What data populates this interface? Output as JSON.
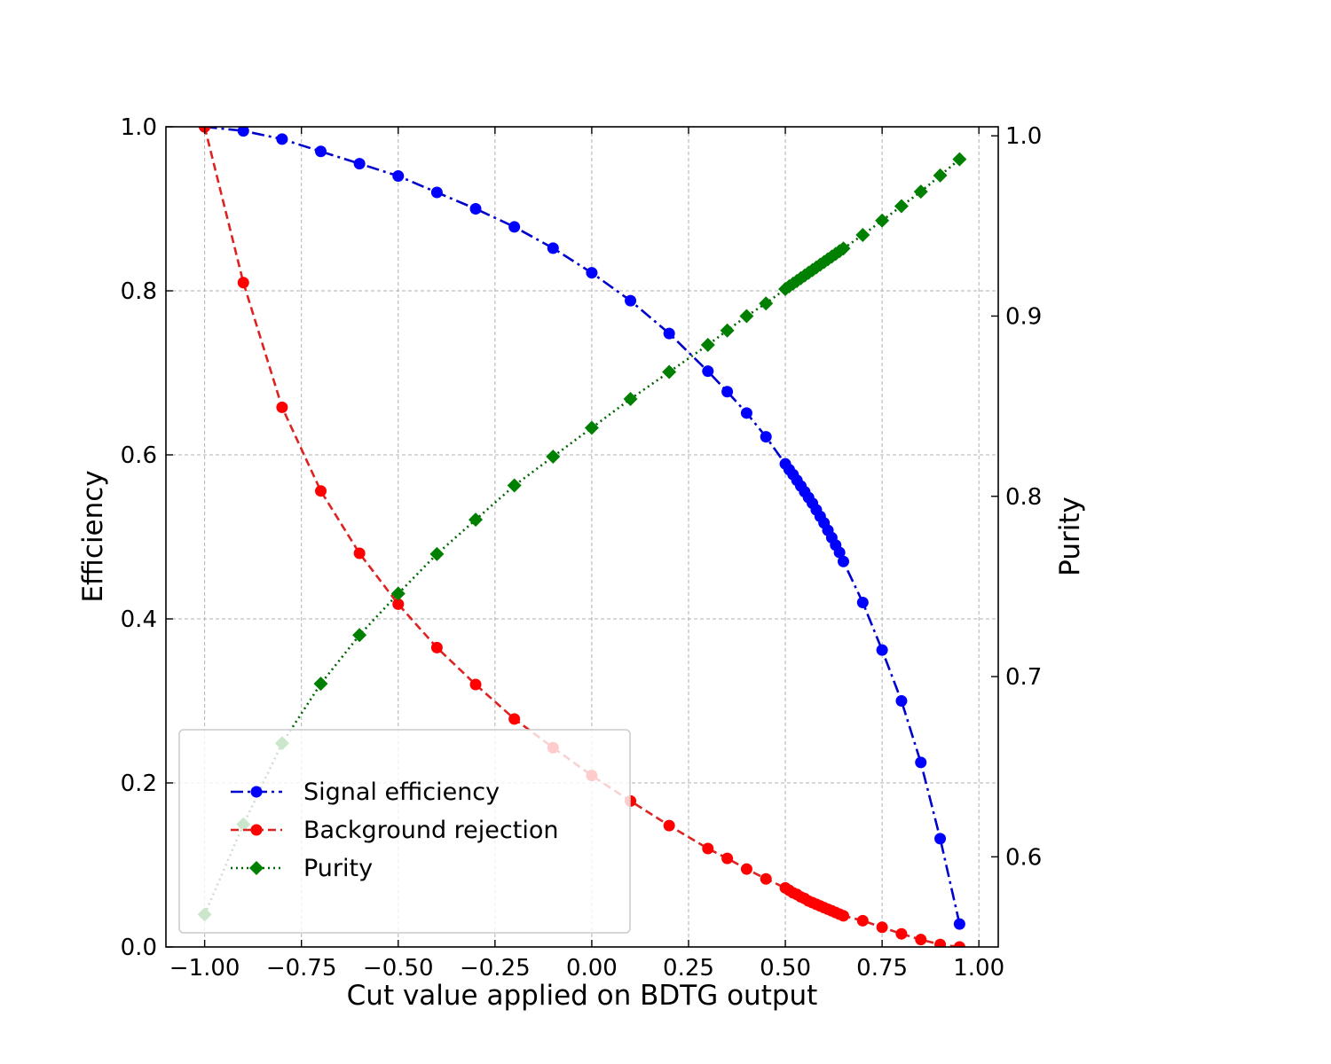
{
  "chart_data": {
    "type": "line",
    "xlabel": "Cut value applied on BDTG output",
    "ylabel": "Efficiency",
    "y2label": "Purity",
    "xlim": [
      -1.1,
      1.05
    ],
    "ylim": [
      0.0,
      1.0
    ],
    "y2lim": [
      0.55,
      1.005
    ],
    "xticks": [
      -1.0,
      -0.75,
      -0.5,
      -0.25,
      0.0,
      0.25,
      0.5,
      0.75,
      1.0
    ],
    "xtick_labels": [
      "−1.00",
      "−0.75",
      "−0.50",
      "−0.25",
      "0.00",
      "0.25",
      "0.50",
      "0.75",
      "1.00"
    ],
    "yticks": [
      0.0,
      0.2,
      0.4,
      0.6,
      0.8,
      1.0
    ],
    "ytick_labels": [
      "0.0",
      "0.2",
      "0.4",
      "0.6",
      "0.8",
      "1.0"
    ],
    "y2ticks": [
      0.6,
      0.7,
      0.8,
      0.9,
      1.0
    ],
    "y2tick_labels": [
      "0.6",
      "0.7",
      "0.8",
      "0.9",
      "1.0"
    ],
    "grid": true,
    "legend_position": "lower-left",
    "series": [
      {
        "name": "Signal efficiency",
        "axis": "left",
        "color": "#0000ff",
        "line_color": "#0000cc",
        "marker": "circle",
        "linestyle": "dashdot",
        "x": [
          -1.0,
          -0.9,
          -0.8,
          -0.7,
          -0.6,
          -0.5,
          -0.4,
          -0.3,
          -0.2,
          -0.1,
          0.0,
          0.1,
          0.2,
          0.3,
          0.35,
          0.4,
          0.45,
          0.5,
          0.51,
          0.52,
          0.53,
          0.54,
          0.55,
          0.56,
          0.57,
          0.58,
          0.59,
          0.6,
          0.61,
          0.62,
          0.63,
          0.64,
          0.65,
          0.7,
          0.75,
          0.8,
          0.85,
          0.9,
          0.95
        ],
        "y": [
          1.0,
          0.995,
          0.985,
          0.97,
          0.955,
          0.94,
          0.92,
          0.9,
          0.878,
          0.852,
          0.822,
          0.788,
          0.748,
          0.702,
          0.677,
          0.651,
          0.622,
          0.589,
          0.582,
          0.576,
          0.569,
          0.562,
          0.555,
          0.548,
          0.541,
          0.533,
          0.525,
          0.517,
          0.508,
          0.499,
          0.49,
          0.481,
          0.47,
          0.42,
          0.362,
          0.3,
          0.225,
          0.132,
          0.028
        ]
      },
      {
        "name": "Background rejection",
        "axis": "left",
        "color": "#ff0000",
        "line_color": "#dd2222",
        "marker": "circle",
        "linestyle": "dashed",
        "x": [
          -1.0,
          -0.9,
          -0.8,
          -0.7,
          -0.6,
          -0.5,
          -0.4,
          -0.3,
          -0.2,
          -0.1,
          0.0,
          0.1,
          0.2,
          0.3,
          0.35,
          0.4,
          0.45,
          0.5,
          0.51,
          0.52,
          0.53,
          0.54,
          0.55,
          0.56,
          0.57,
          0.58,
          0.59,
          0.6,
          0.61,
          0.62,
          0.63,
          0.64,
          0.65,
          0.7,
          0.75,
          0.8,
          0.85,
          0.9,
          0.95
        ],
        "y": [
          1.0,
          0.81,
          0.658,
          0.556,
          0.48,
          0.418,
          0.365,
          0.32,
          0.278,
          0.243,
          0.209,
          0.178,
          0.148,
          0.12,
          0.108,
          0.095,
          0.083,
          0.072,
          0.069,
          0.066,
          0.064,
          0.061,
          0.059,
          0.056,
          0.054,
          0.052,
          0.05,
          0.048,
          0.046,
          0.044,
          0.042,
          0.04,
          0.038,
          0.032,
          0.024,
          0.016,
          0.009,
          0.003,
          0.0
        ]
      },
      {
        "name": "Purity",
        "axis": "right",
        "color": "#008000",
        "line_color": "#006400",
        "marker": "diamond",
        "linestyle": "dotted",
        "x": [
          -1.0,
          -0.9,
          -0.8,
          -0.7,
          -0.6,
          -0.5,
          -0.4,
          -0.3,
          -0.2,
          -0.1,
          0.0,
          0.1,
          0.2,
          0.3,
          0.35,
          0.4,
          0.45,
          0.5,
          0.51,
          0.52,
          0.53,
          0.54,
          0.55,
          0.56,
          0.57,
          0.58,
          0.59,
          0.6,
          0.61,
          0.62,
          0.63,
          0.64,
          0.65,
          0.7,
          0.75,
          0.8,
          0.85,
          0.9,
          0.95
        ],
        "y": [
          0.568,
          0.618,
          0.663,
          0.696,
          0.723,
          0.746,
          0.768,
          0.787,
          0.806,
          0.822,
          0.838,
          0.854,
          0.869,
          0.884,
          0.892,
          0.9,
          0.907,
          0.915,
          0.9165,
          0.918,
          0.9195,
          0.921,
          0.9225,
          0.924,
          0.9255,
          0.927,
          0.9285,
          0.93,
          0.9315,
          0.933,
          0.9345,
          0.936,
          0.9375,
          0.945,
          0.953,
          0.961,
          0.969,
          0.978,
          0.987
        ]
      }
    ]
  }
}
